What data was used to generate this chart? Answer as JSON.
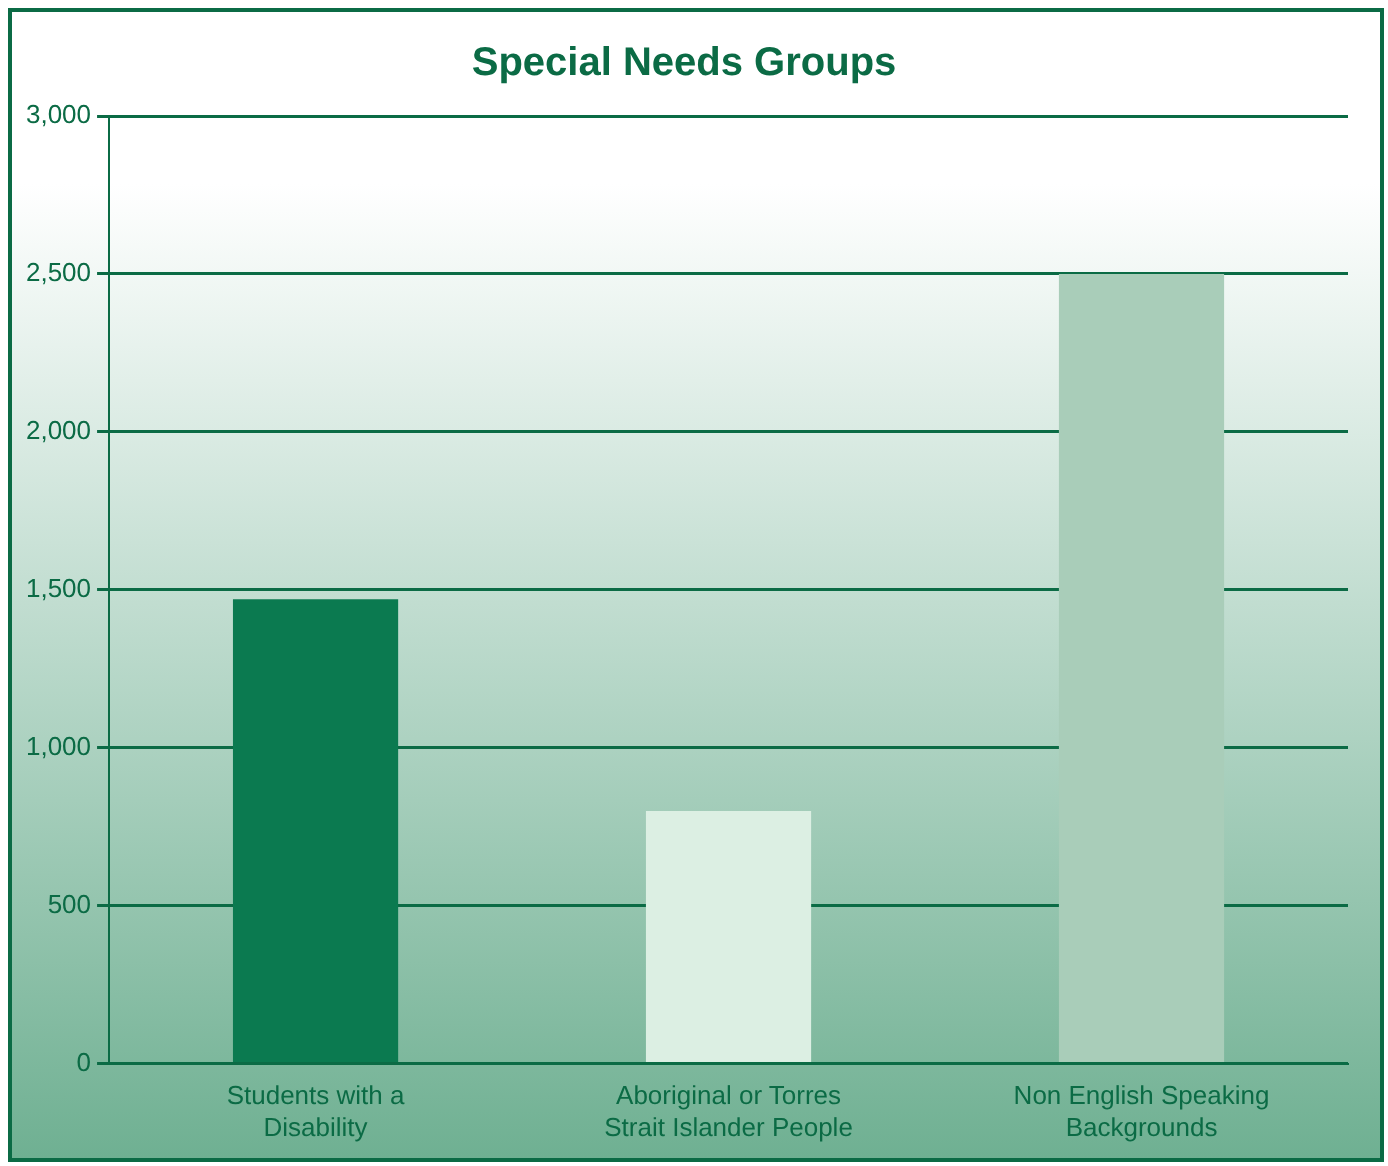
{
  "chart_data": {
    "type": "bar",
    "title": "Special Needs Groups",
    "categories": [
      "Students with a Disability",
      "Aboriginal or Torres Strait Islander People",
      "Non English Speaking Backgrounds"
    ],
    "values": [
      1470,
      800,
      2500
    ],
    "colors": [
      "#0b7a50",
      "#dcefe3",
      "#a9cdb9"
    ],
    "ylim": [
      0,
      3000
    ],
    "yticks": [
      {
        "value": 0,
        "label": "0"
      },
      {
        "value": 500,
        "label": "500"
      },
      {
        "value": 1000,
        "label": "1,000"
      },
      {
        "value": 1500,
        "label": "1,500"
      },
      {
        "value": 2000,
        "label": "2,000"
      },
      {
        "value": 2500,
        "label": "2,500"
      },
      {
        "value": 3000,
        "label": "3,000"
      }
    ],
    "grid": "y",
    "legend": false
  }
}
